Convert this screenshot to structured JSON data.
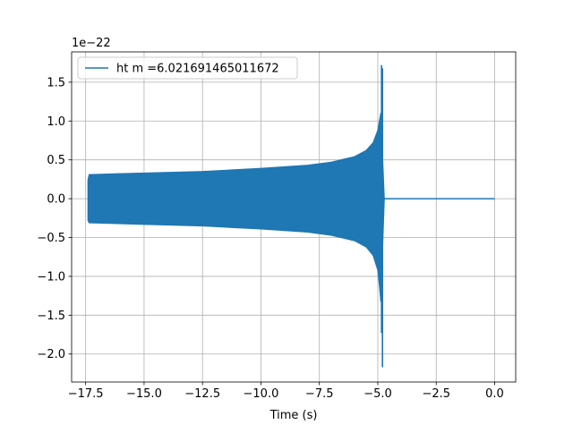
{
  "chart_data": {
    "type": "line",
    "title": "",
    "xlabel": "Time (s)",
    "ylabel": "",
    "offset_text": "1e−22",
    "xlim": [
      -18.1,
      0.9
    ],
    "ylim": [
      -2.36,
      1.89
    ],
    "grid": true,
    "legend_position": "upper-left",
    "x_ticks": [
      {
        "value": -17.5,
        "label": "−17.5"
      },
      {
        "value": -15.0,
        "label": "−15.0"
      },
      {
        "value": -12.5,
        "label": "−12.5"
      },
      {
        "value": -10.0,
        "label": "−10.0"
      },
      {
        "value": -7.5,
        "label": "−7.5"
      },
      {
        "value": -5.0,
        "label": "−5.0"
      },
      {
        "value": -2.5,
        "label": "−2.5"
      },
      {
        "value": 0.0,
        "label": "0.0"
      }
    ],
    "y_ticks": [
      {
        "value": 1.5,
        "label": "1.5"
      },
      {
        "value": 1.0,
        "label": "1.0"
      },
      {
        "value": 0.5,
        "label": "0.5"
      },
      {
        "value": 0.0,
        "label": "0.0"
      },
      {
        "value": -0.5,
        "label": "−0.5"
      },
      {
        "value": -1.0,
        "label": "−1.0"
      },
      {
        "value": -1.5,
        "label": "−1.5"
      },
      {
        "value": -2.0,
        "label": "−2.0"
      }
    ],
    "series": [
      {
        "name": "ht m =6.021691465011672",
        "color": "#1f77b4",
        "upper_envelope": {
          "x": [
            -17.4,
            -17.35,
            -15.0,
            -12.5,
            -10.0,
            -8.0,
            -7.0,
            -6.0,
            -5.5,
            -5.2,
            -5.0,
            -4.92,
            -4.87
          ],
          "y": [
            0.24,
            0.31,
            0.33,
            0.35,
            0.39,
            0.43,
            0.47,
            0.54,
            0.62,
            0.72,
            0.88,
            1.02,
            1.1
          ]
        },
        "lower_envelope": {
          "x": [
            -17.4,
            -17.35,
            -15.0,
            -12.5,
            -10.0,
            -8.0,
            -7.0,
            -6.0,
            -5.5,
            -5.2,
            -5.0,
            -4.92,
            -4.87
          ],
          "y": [
            -0.28,
            -0.31,
            -0.33,
            -0.35,
            -0.39,
            -0.43,
            -0.47,
            -0.54,
            -0.62,
            -0.73,
            -0.92,
            -1.15,
            -1.32
          ]
        },
        "merger_spikes": [
          {
            "x": -4.84,
            "y_min": -1.73,
            "y_max": 1.72
          },
          {
            "x": -4.8,
            "y_min": -2.17,
            "y_max": 1.68
          }
        ],
        "ringdown_end_x": -4.72,
        "flat_segment": {
          "x": [
            -4.72,
            0.0
          ],
          "y": 0.0
        }
      }
    ]
  }
}
